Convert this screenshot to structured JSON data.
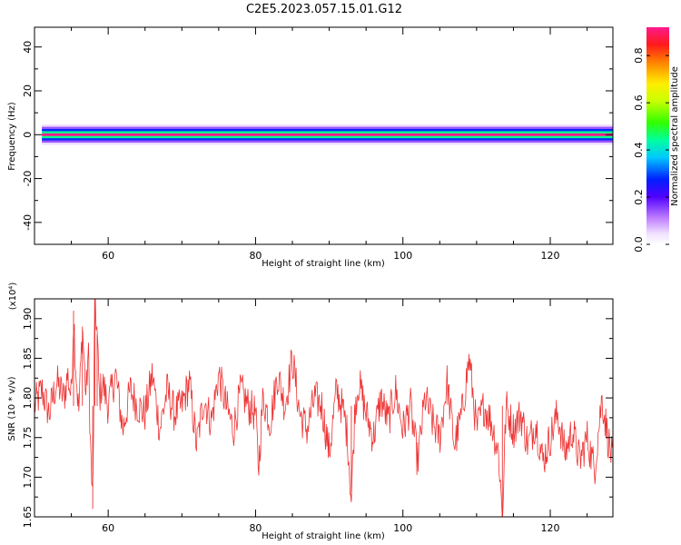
{
  "title": "C2E5.2023.057.15.01.G12",
  "chart_data": [
    {
      "type": "heatmap",
      "xlabel": "Height of straight line (km)",
      "ylabel": "Frequency (Hz)",
      "xlim": [
        50,
        128.5
      ],
      "ylim": [
        -50,
        49
      ],
      "x_ticks": [
        60,
        80,
        100,
        120
      ],
      "y_ticks": [
        -40,
        -20,
        0,
        20,
        40
      ],
      "colorbar": {
        "label": "Normalized spectral amplitude",
        "range": [
          0,
          0.92
        ],
        "ticks": [
          0.0,
          0.2,
          0.4,
          0.6,
          0.8
        ],
        "colormap": "rainbow"
      },
      "data_extent_x": [
        51,
        128.5
      ],
      "band": [
        {
          "freq": 0,
          "amplitude": 0.92
        },
        {
          "freq": 1,
          "amplitude": 0.45
        },
        {
          "freq": -1,
          "amplitude": 0.45
        },
        {
          "freq": 2,
          "amplitude": 0.28
        },
        {
          "freq": -2,
          "amplitude": 0.28
        },
        {
          "freq": 3,
          "amplitude": 0.14
        },
        {
          "freq": -3,
          "amplitude": 0.14
        },
        {
          "freq": 4,
          "amplitude": 0.05
        },
        {
          "freq": -4,
          "amplitude": 0.05
        }
      ]
    },
    {
      "type": "line",
      "xlabel": "Height of straight line (km)",
      "ylabel": "SNR (10 * v/v)",
      "y_multiplier": "(x10⁴)",
      "xlim": [
        50,
        128.5
      ],
      "ylim": [
        1.65,
        1.925
      ],
      "x_ticks": [
        60,
        80,
        100,
        120
      ],
      "y_ticks": [
        1.65,
        1.7,
        1.75,
        1.8,
        1.85,
        1.9
      ],
      "y_tick_labels": [
        "1.65",
        "1.70",
        "1.75",
        "1.80",
        "1.85",
        "1.90"
      ],
      "series": [
        {
          "color": "#ee3333",
          "x": [
            50,
            51,
            52,
            53,
            54,
            54.5,
            55,
            55.3,
            55.6,
            56,
            56.5,
            57,
            57.3,
            57.6,
            57.9,
            58.2,
            58.5,
            58.8,
            59.2,
            60,
            61,
            62,
            63,
            64,
            65,
            66,
            67,
            68,
            69,
            70,
            71,
            72,
            73,
            74,
            75,
            76,
            77,
            78,
            79,
            80,
            80.4,
            81,
            82,
            83,
            84,
            85,
            86,
            87,
            88,
            89,
            90,
            91,
            92,
            92.5,
            93,
            93.5,
            94,
            95,
            96,
            97,
            98,
            99,
            100,
            101,
            102,
            103,
            104,
            105,
            106,
            107,
            108,
            109,
            110,
            111,
            112,
            113,
            113.5,
            114,
            115,
            116,
            117,
            118,
            119,
            120,
            121,
            122,
            123,
            124,
            125,
            126,
            127,
            128,
            128.5
          ],
          "y": [
            1.79,
            1.81,
            1.78,
            1.82,
            1.8,
            1.83,
            1.8,
            1.91,
            1.84,
            1.78,
            1.89,
            1.8,
            1.86,
            1.74,
            1.66,
            1.93,
            1.88,
            1.8,
            1.82,
            1.79,
            1.83,
            1.76,
            1.81,
            1.79,
            1.78,
            1.83,
            1.76,
            1.81,
            1.78,
            1.79,
            1.82,
            1.74,
            1.8,
            1.77,
            1.83,
            1.79,
            1.76,
            1.81,
            1.79,
            1.78,
            1.71,
            1.8,
            1.77,
            1.83,
            1.79,
            1.85,
            1.78,
            1.76,
            1.8,
            1.79,
            1.73,
            1.81,
            1.78,
            1.75,
            1.67,
            1.79,
            1.82,
            1.78,
            1.75,
            1.8,
            1.77,
            1.81,
            1.76,
            1.79,
            1.72,
            1.8,
            1.77,
            1.75,
            1.82,
            1.74,
            1.78,
            1.85,
            1.76,
            1.79,
            1.77,
            1.73,
            1.65,
            1.79,
            1.76,
            1.78,
            1.74,
            1.77,
            1.72,
            1.75,
            1.78,
            1.73,
            1.76,
            1.72,
            1.75,
            1.71,
            1.8,
            1.74,
            1.72
          ]
        }
      ]
    }
  ]
}
